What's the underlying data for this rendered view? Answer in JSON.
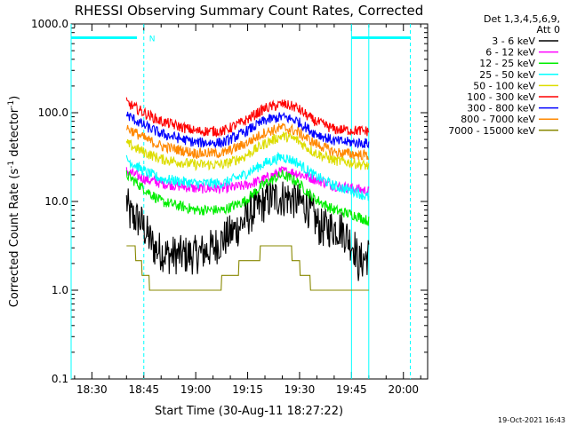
{
  "chart_data": {
    "type": "line",
    "title": "RHESSI Observing Summary Count Rates, Corrected",
    "xlabel": "Start Time (30-Aug-11 18:27:22)",
    "ylabel": "Corrected Count Rate (s",
    "ylabel_sup1": "-1",
    "ylabel_mid": " detector",
    "ylabel_sup2": "-1",
    "ylabel_end": ")",
    "y_scale": "log",
    "ylim": [
      0.1,
      1000
    ],
    "xlim_minutes": [
      "18:24",
      "20:07"
    ],
    "x_ticks": [
      {
        "label": "18:30",
        "t": "18:30"
      },
      {
        "label": "18:45",
        "t": "18:45"
      },
      {
        "label": "19:00",
        "t": "19:00"
      },
      {
        "label": "19:15",
        "t": "19:15"
      },
      {
        "label": "19:30",
        "t": "19:30"
      },
      {
        "label": "19:45",
        "t": "19:45"
      },
      {
        "label": "20:00",
        "t": "20:00"
      }
    ],
    "y_ticks": [
      {
        "label": "0.1",
        "v": 0.1
      },
      {
        "label": "1.0",
        "v": 1
      },
      {
        "label": "10.0",
        "v": 10
      },
      {
        "label": "100.0",
        "v": 100
      },
      {
        "label": "1000.0",
        "v": 1000
      }
    ],
    "legend_header": [
      "Det 1,3,4,5,6,9,",
      "Att 0"
    ],
    "legend_position": "right",
    "series": [
      {
        "name": "3 - 6 keV",
        "color": "#000000",
        "t": [
          "18:40",
          "18:41",
          "18:44",
          "18:48",
          "18:52",
          "19:00",
          "19:05",
          "19:12",
          "19:17",
          "19:22",
          "19:27",
          "19:32",
          "19:36",
          "19:42",
          "19:46",
          "19:47",
          "19:50"
        ],
        "values": [
          10,
          7,
          6,
          3,
          2.5,
          2.5,
          3,
          5,
          8,
          11,
          11,
          9,
          5,
          5,
          3,
          2,
          2.5
        ]
      },
      {
        "name": "6 - 12 keV",
        "color": "#ff00ff",
        "t": [
          "18:40",
          "18:45",
          "18:50",
          "19:00",
          "19:08",
          "19:14",
          "19:20",
          "19:25",
          "19:29",
          "19:34",
          "19:40",
          "19:46",
          "19:50"
        ],
        "values": [
          22,
          18,
          16,
          14,
          14,
          15,
          18,
          22,
          21,
          18,
          15,
          14,
          13
        ]
      },
      {
        "name": "12 - 25 keV",
        "color": "#00ee00",
        "t": [
          "18:40",
          "18:45",
          "18:50",
          "19:00",
          "19:08",
          "19:14",
          "19:20",
          "19:25",
          "19:29",
          "19:34",
          "19:40",
          "19:46",
          "19:50"
        ],
        "values": [
          20,
          14,
          10,
          8,
          8,
          10,
          16,
          20,
          17,
          11,
          8,
          7,
          6
        ]
      },
      {
        "name": "25 - 50 keV",
        "color": "#00ffff",
        "t": [
          "18:40",
          "18:45",
          "18:50",
          "19:00",
          "19:08",
          "19:14",
          "19:20",
          "19:25",
          "19:29",
          "19:34",
          "19:40",
          "19:46",
          "19:50"
        ],
        "values": [
          30,
          22,
          18,
          16,
          16,
          20,
          27,
          32,
          28,
          20,
          15,
          13,
          11
        ]
      },
      {
        "name": "50 - 100 keV",
        "color": "#dddd00",
        "t": [
          "18:40",
          "18:45",
          "18:50",
          "19:00",
          "19:08",
          "19:14",
          "19:20",
          "19:25",
          "19:29",
          "19:34",
          "19:40",
          "19:46",
          "19:50"
        ],
        "values": [
          45,
          36,
          30,
          26,
          26,
          32,
          45,
          55,
          50,
          36,
          29,
          27,
          25
        ]
      },
      {
        "name": "100 - 300 keV",
        "color": "#ff0000",
        "t": [
          "18:40",
          "18:45",
          "18:50",
          "19:00",
          "19:08",
          "19:14",
          "19:20",
          "19:25",
          "19:29",
          "19:34",
          "19:40",
          "19:46",
          "19:50"
        ],
        "values": [
          130,
          100,
          80,
          62,
          62,
          80,
          112,
          125,
          115,
          82,
          65,
          63,
          62
        ]
      },
      {
        "name": "300 - 800 keV",
        "color": "#0000ff",
        "t": [
          "18:40",
          "18:45",
          "18:50",
          "19:00",
          "19:08",
          "19:14",
          "19:20",
          "19:25",
          "19:29",
          "19:34",
          "19:40",
          "19:46",
          "19:50"
        ],
        "values": [
          95,
          72,
          58,
          46,
          46,
          60,
          82,
          90,
          82,
          60,
          48,
          46,
          45
        ]
      },
      {
        "name": "800 - 7000 keV",
        "color": "#ff8800",
        "t": [
          "18:40",
          "18:45",
          "18:50",
          "19:00",
          "19:08",
          "19:14",
          "19:20",
          "19:25",
          "19:29",
          "19:34",
          "19:40",
          "19:46",
          "19:50"
        ],
        "values": [
          68,
          52,
          42,
          35,
          35,
          44,
          60,
          68,
          62,
          46,
          36,
          34,
          33
        ]
      },
      {
        "name": "7000 - 15000 keV",
        "color": "#888800",
        "t": [
          "18:40",
          "18:43",
          "18:45",
          "18:48",
          "18:52",
          "19:00",
          "19:05",
          "19:10",
          "19:14",
          "19:18",
          "19:22",
          "19:27",
          "19:31",
          "19:35",
          "19:50"
        ],
        "values": [
          3.5,
          2.5,
          1.5,
          1,
          1,
          1,
          1,
          1.5,
          2,
          2.5,
          3.5,
          3,
          1.5,
          1,
          1
        ]
      }
    ],
    "overlays": {
      "saa_bars": [
        {
          "t_start": "18:24",
          "t_end": "18:43"
        },
        {
          "t_start": "19:45",
          "t_end": "20:02"
        }
      ],
      "saa_level": 700,
      "saa_color": "#00ffff",
      "night_marker": {
        "label": "N",
        "t": "18:45"
      },
      "vertical_solid": [
        "18:24",
        "19:45",
        "19:50"
      ],
      "vertical_dashed": [
        "18:45",
        "20:02"
      ]
    },
    "grid": false
  },
  "footer_timestamp": "19-Oct-2021 16:43"
}
